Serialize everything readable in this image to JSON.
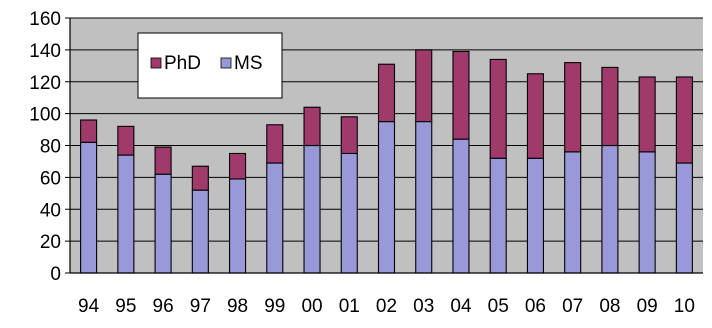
{
  "chart_data": {
    "type": "bar",
    "stacked": true,
    "categories": [
      "94",
      "95",
      "96",
      "97",
      "98",
      "99",
      "00",
      "01",
      "02",
      "03",
      "04",
      "05",
      "06",
      "07",
      "08",
      "09",
      "10"
    ],
    "series": [
      {
        "name": "MS",
        "color": "#9999d9",
        "values": [
          82,
          74,
          62,
          52,
          59,
          69,
          80,
          75,
          95,
          95,
          84,
          72,
          72,
          76,
          80,
          76,
          69
        ]
      },
      {
        "name": "PhD",
        "color": "#a03a6a",
        "values": [
          14,
          18,
          17,
          15,
          16,
          24,
          24,
          23,
          36,
          45,
          55,
          62,
          53,
          56,
          49,
          47,
          54
        ]
      }
    ],
    "legend_order": [
      "PhD",
      "MS"
    ],
    "ylim": [
      0,
      160
    ],
    "yticks": [
      "0",
      "20",
      "40",
      "60",
      "80",
      "100",
      "120",
      "140",
      "160"
    ],
    "title": "",
    "xlabel": "",
    "ylabel": "",
    "grid": true,
    "plot_background": "#c0c0c0",
    "legend_position": "top-left"
  }
}
